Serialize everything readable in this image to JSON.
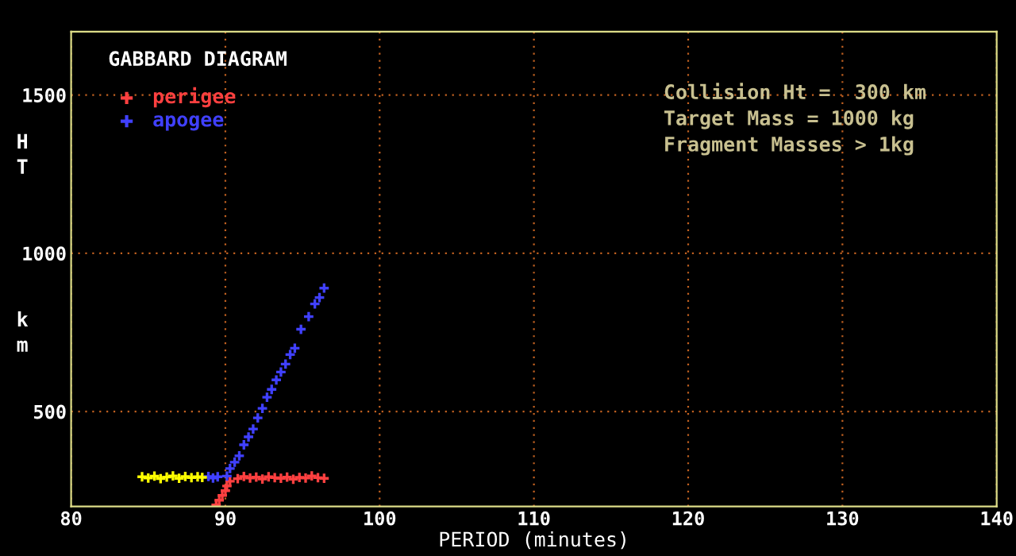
{
  "chart_data": {
    "type": "scatter",
    "title": "GABBARD DIAGRAM",
    "xlabel": "PERIOD (minutes)",
    "ylabel": "HT km",
    "xlim": [
      80,
      140
    ],
    "xticks": [
      80,
      90,
      100,
      110,
      120,
      130,
      140
    ],
    "ylim": [
      200,
      1700
    ],
    "yticks": [
      500,
      1000,
      1500
    ],
    "grid": true,
    "legend": "top left",
    "marker": "cross",
    "annotations": [
      "Collision Ht =  300 km",
      "Target Mass = 1000 kg",
      "Fragment Masses > 1kg"
    ],
    "series": [
      {
        "name": "perigee",
        "color": "#ff4040",
        "x": [
          90.8,
          91.2,
          91.6,
          92.0,
          92.4,
          92.8,
          93.2,
          93.6,
          94.0,
          94.4,
          94.8,
          95.2,
          95.6,
          96.0,
          96.4,
          90.3,
          90.1,
          90.0,
          89.8,
          89.6,
          89.4
        ],
        "values": [
          288,
          295,
          290,
          293,
          287,
          294,
          291,
          289,
          293,
          286,
          292,
          290,
          297,
          291,
          289,
          280,
          265,
          250,
          235,
          220,
          205
        ]
      },
      {
        "name": "apogee",
        "color": "#4040ff",
        "x": [
          88.9,
          89.2,
          89.5,
          90.1,
          90.3,
          90.6,
          90.9,
          91.2,
          91.5,
          91.8,
          92.1,
          92.4,
          92.7,
          93.0,
          93.3,
          93.6,
          93.9,
          94.2,
          94.5,
          94.9,
          95.4,
          95.8,
          96.1,
          96.4
        ],
        "values": [
          295,
          290,
          294,
          296,
          320,
          340,
          360,
          395,
          420,
          445,
          480,
          510,
          545,
          570,
          600,
          625,
          650,
          680,
          700,
          760,
          800,
          840,
          860,
          890
        ]
      },
      {
        "color": "#ffff00",
        "x": [
          84.6,
          85.0,
          85.4,
          85.8,
          86.2,
          86.6,
          87.0,
          87.4,
          87.8,
          88.2,
          88.5
        ],
        "values": [
          294,
          290,
          296,
          288,
          293,
          297,
          289,
          295,
          291,
          294,
          292
        ]
      }
    ]
  }
}
